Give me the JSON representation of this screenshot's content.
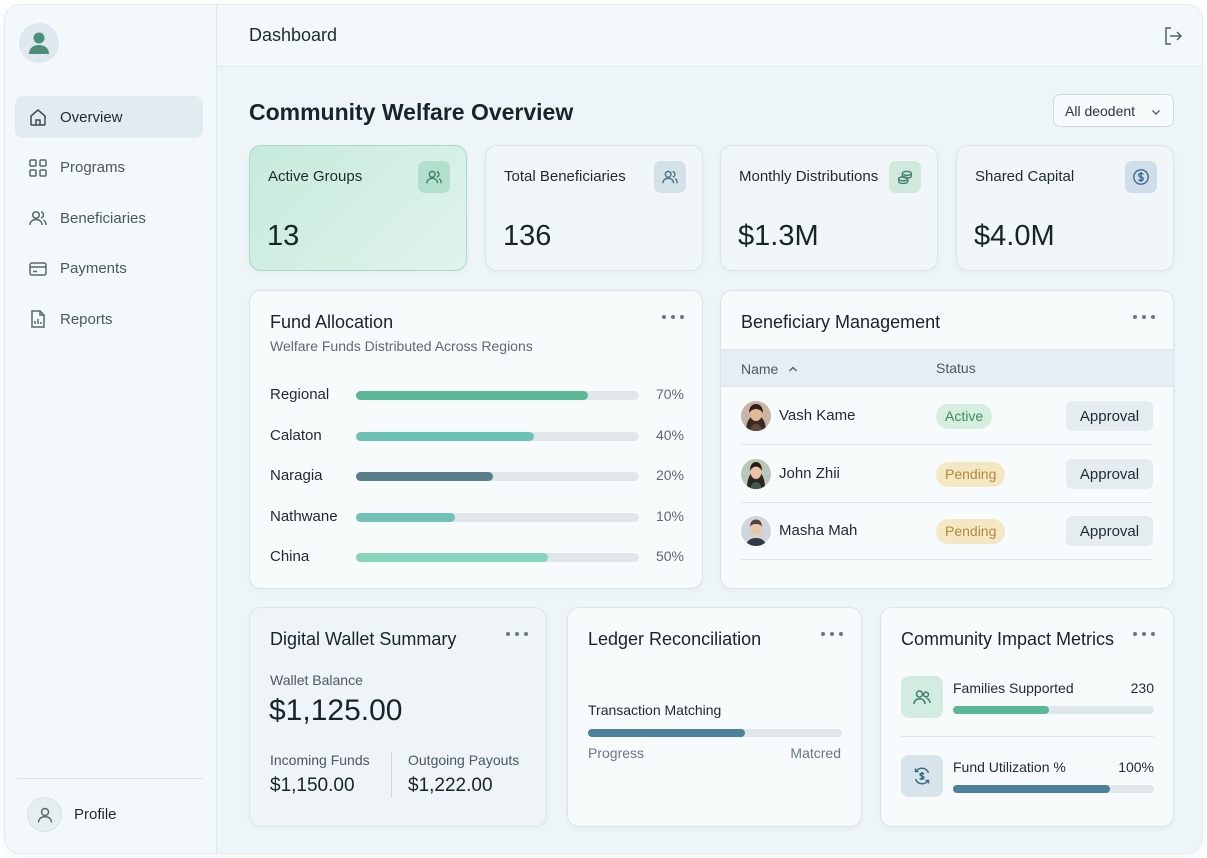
{
  "header": {
    "title": "Dashboard"
  },
  "sidebar": {
    "items": [
      {
        "label": "Overview",
        "icon": "home-icon",
        "active": true
      },
      {
        "label": "Programs",
        "icon": "grid-icon"
      },
      {
        "label": "Beneficiaries",
        "icon": "users-icon"
      },
      {
        "label": "Payments",
        "icon": "card-icon"
      },
      {
        "label": "Reports",
        "icon": "report-icon"
      }
    ],
    "profile_label": "Profile"
  },
  "page": {
    "title": "Community Welfare Overview",
    "filter_value": "All deodent"
  },
  "stats": [
    {
      "label": "Active Groups",
      "value": "13",
      "icon": "users-icon"
    },
    {
      "label": "Total Beneficiaries",
      "value": "136",
      "icon": "users-icon"
    },
    {
      "label": "Monthly Distributions",
      "value": "$1.3M",
      "icon": "coins-icon"
    },
    {
      "label": "Shared Capital",
      "value": "$4.0M",
      "icon": "dollar-circle-icon"
    }
  ],
  "fund_allocation": {
    "title": "Fund Allocation",
    "subtitle": "Welfare Funds Distributed Across Regions",
    "rows": [
      {
        "name": "Regional",
        "pct_label": "70%",
        "fill": 0.82,
        "color": "#5bb796"
      },
      {
        "name": "Calaton",
        "pct_label": "40%",
        "fill": 0.63,
        "color": "#6cc2b3"
      },
      {
        "name": "Naragia",
        "pct_label": "20%",
        "fill": 0.485,
        "color": "#5a7f8c"
      },
      {
        "name": "Nathwane",
        "pct_label": "10%",
        "fill": 0.35,
        "color": "#72c3b7"
      },
      {
        "name": "China",
        "pct_label": "50%",
        "fill": 0.68,
        "color": "#86d4ba"
      }
    ]
  },
  "beneficiary_management": {
    "title": "Beneficiary Management",
    "col_name": "Name",
    "col_status": "Status",
    "rows": [
      {
        "name": "Vash Kame",
        "status": "Active",
        "action": "Approval"
      },
      {
        "name": "John Zhii",
        "status": "Pending",
        "action": "Approval"
      },
      {
        "name": "Masha Mah",
        "status": "Pending",
        "action": "Approval"
      }
    ]
  },
  "wallet": {
    "title": "Digital Wallet Summary",
    "balance_label": "Wallet Balance",
    "balance": "$1,125.00",
    "incoming_label": "Incoming Funds",
    "incoming": "$1,150.00",
    "outgoing_label": "Outgoing Payouts",
    "outgoing": "$1,222.00"
  },
  "ledger": {
    "title": "Ledger Reconciliation",
    "bar_label": "Transaction Matching",
    "fill": 0.62,
    "left_label": "Progress",
    "right_label": "Matcred"
  },
  "impact": {
    "title": "Community Impact Metrics",
    "rows": [
      {
        "label": "Families Supported",
        "value": "230",
        "fill": 0.48,
        "color": "#5bb796",
        "icon": "users-icon"
      },
      {
        "label": "Fund Utilization %",
        "value": "100%",
        "fill": 0.78,
        "color": "#4b8299",
        "icon": "dollar-cycle-icon"
      }
    ]
  }
}
